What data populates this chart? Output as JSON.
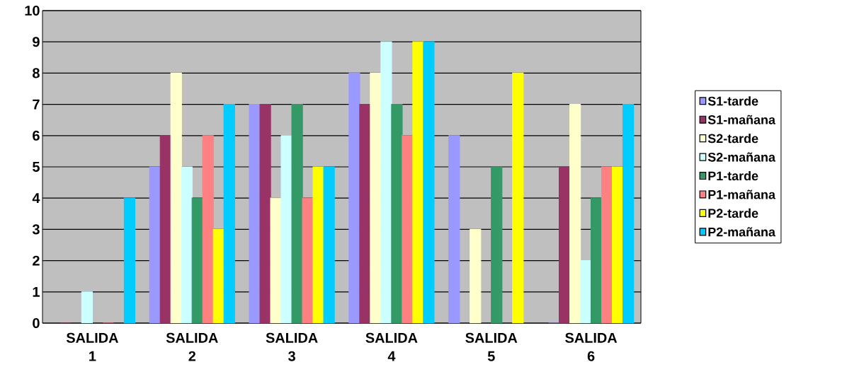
{
  "chart_data": {
    "type": "bar",
    "categories": [
      "SALIDA 1",
      "SALIDA 2",
      "SALIDA 3",
      "SALIDA 4",
      "SALIDA 5",
      "SALIDA 6"
    ],
    "series": [
      {
        "name": "S1-tarde",
        "color": "#9999ff",
        "values": [
          null,
          5,
          7,
          8,
          6,
          0
        ]
      },
      {
        "name": "S1-mañana",
        "color": "#993366",
        "values": [
          0,
          6,
          7,
          7,
          null,
          5
        ]
      },
      {
        "name": "S2-tarde",
        "color": "#ffffcc",
        "values": [
          null,
          8,
          4,
          8,
          3,
          7
        ]
      },
      {
        "name": "S2-mañana",
        "color": "#ccffff",
        "values": [
          1,
          5,
          6,
          9,
          null,
          2
        ]
      },
      {
        "name": "P1-tarde",
        "color": "#339966",
        "values": [
          null,
          4,
          7,
          7,
          5,
          4
        ]
      },
      {
        "name": "P1-mañana",
        "color": "#ff8080",
        "values": [
          0,
          6,
          4,
          6,
          null,
          5
        ]
      },
      {
        "name": "P2-tarde",
        "color": "#ffff00",
        "values": [
          null,
          3,
          5,
          9,
          8,
          5
        ]
      },
      {
        "name": "P2-mañana",
        "color": "#00ccff",
        "values": [
          4,
          7,
          5,
          9,
          null,
          7
        ]
      }
    ],
    "ylim": [
      0,
      10
    ],
    "yticks": [
      0,
      1,
      2,
      3,
      4,
      5,
      6,
      7,
      8,
      9,
      10
    ],
    "grid": "y",
    "legend": "right"
  }
}
